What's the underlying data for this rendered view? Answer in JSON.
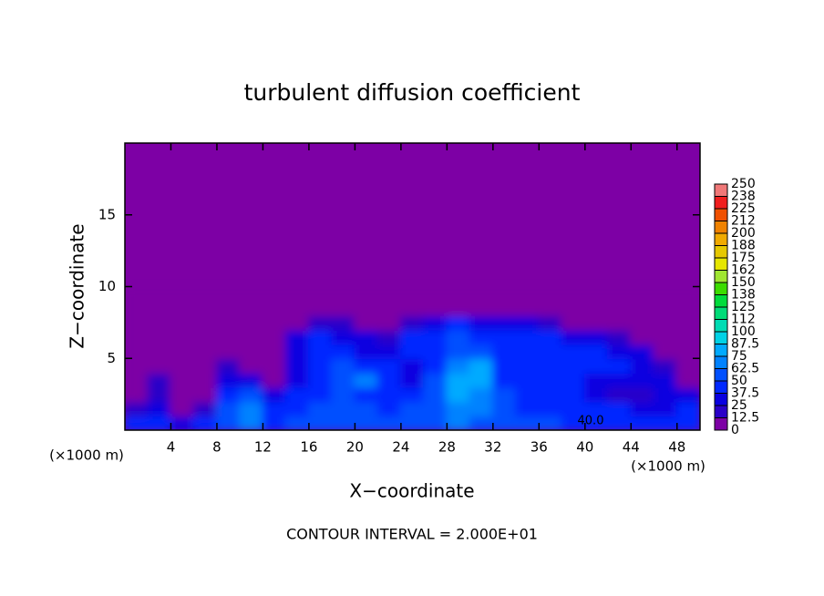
{
  "chart_data": {
    "type": "contour",
    "title": "turbulent diffusion coefficient",
    "xlabel": "X−coordinate",
    "ylabel": "Z−coordinate",
    "x_unit": "(×1000 m)",
    "y_unit": "(×1000 m)",
    "xlim": [
      0,
      50
    ],
    "ylim": [
      0,
      20
    ],
    "xticks": [
      4,
      8,
      12,
      16,
      20,
      24,
      28,
      32,
      36,
      40,
      44,
      48
    ],
    "yticks": [
      5,
      10,
      15
    ],
    "levels": [
      0,
      12.5,
      25,
      37.5,
      50,
      62.5,
      75,
      87.5,
      100,
      112,
      125,
      138,
      150,
      162,
      175,
      188,
      200,
      212,
      225,
      238,
      250
    ],
    "colors": [
      "#7d00a5",
      "#2a00c8",
      "#0a00e0",
      "#0028ff",
      "#0050ff",
      "#0082ff",
      "#00aaff",
      "#00d2e6",
      "#00dcb4",
      "#00dc78",
      "#00dc3c",
      "#3cdc00",
      "#a0e632",
      "#e6e600",
      "#e6c800",
      "#f0aa00",
      "#f08200",
      "#f05000",
      "#f01e1e",
      "#f07878"
    ],
    "x": [
      1,
      3,
      5,
      7,
      9,
      11,
      13,
      15,
      17,
      19,
      21,
      23,
      25,
      27,
      29,
      31,
      33,
      35,
      37,
      39,
      41,
      43,
      45,
      47,
      49
    ],
    "y": [
      0.5,
      1.5,
      2.5,
      3.5,
      4.5,
      5.5,
      6.5,
      7.5,
      8.5,
      9.5
    ],
    "z": [
      [
        45,
        40,
        30,
        40,
        55,
        70,
        45,
        50,
        55,
        60,
        55,
        50,
        55,
        60,
        65,
        60,
        55,
        50,
        50,
        45,
        45,
        45,
        40,
        40,
        45
      ],
      [
        20,
        30,
        10,
        20,
        50,
        65,
        40,
        45,
        50,
        55,
        50,
        45,
        50,
        55,
        70,
        65,
        50,
        45,
        45,
        45,
        40,
        40,
        30,
        35,
        40
      ],
      [
        10,
        20,
        5,
        10,
        40,
        50,
        30,
        40,
        45,
        60,
        45,
        40,
        45,
        50,
        75,
        70,
        50,
        45,
        45,
        40,
        30,
        20,
        15,
        30,
        35
      ],
      [
        5,
        15,
        5,
        5,
        30,
        30,
        10,
        35,
        45,
        55,
        65,
        40,
        30,
        50,
        80,
        85,
        45,
        40,
        45,
        40,
        35,
        30,
        30,
        25,
        10
      ],
      [
        5,
        10,
        5,
        5,
        15,
        10,
        5,
        30,
        45,
        50,
        45,
        40,
        35,
        45,
        70,
        80,
        40,
        40,
        45,
        45,
        40,
        40,
        35,
        20,
        5
      ],
      [
        0,
        5,
        0,
        0,
        5,
        5,
        5,
        35,
        45,
        40,
        35,
        30,
        40,
        45,
        60,
        55,
        40,
        45,
        45,
        40,
        40,
        35,
        25,
        10,
        0
      ],
      [
        0,
        0,
        0,
        0,
        0,
        0,
        0,
        30,
        40,
        35,
        30,
        20,
        40,
        45,
        55,
        45,
        40,
        45,
        40,
        30,
        30,
        20,
        10,
        0,
        0
      ],
      [
        0,
        0,
        0,
        0,
        0,
        0,
        0,
        5,
        20,
        20,
        10,
        5,
        15,
        30,
        40,
        30,
        30,
        25,
        15,
        5,
        5,
        5,
        0,
        0,
        0
      ],
      [
        0,
        0,
        0,
        0,
        0,
        0,
        0,
        0,
        0,
        0,
        0,
        0,
        0,
        10,
        10,
        0,
        0,
        0,
        0,
        0,
        0,
        0,
        0,
        0,
        0
      ],
      [
        0,
        0,
        0,
        0,
        0,
        0,
        0,
        0,
        0,
        0,
        0,
        0,
        0,
        0,
        0,
        0,
        0,
        0,
        0,
        0,
        0,
        0,
        0,
        0,
        0
      ]
    ],
    "contour_label": "40.0",
    "contour_interval": "CONTOUR INTERVAL = 2.000E+01"
  }
}
